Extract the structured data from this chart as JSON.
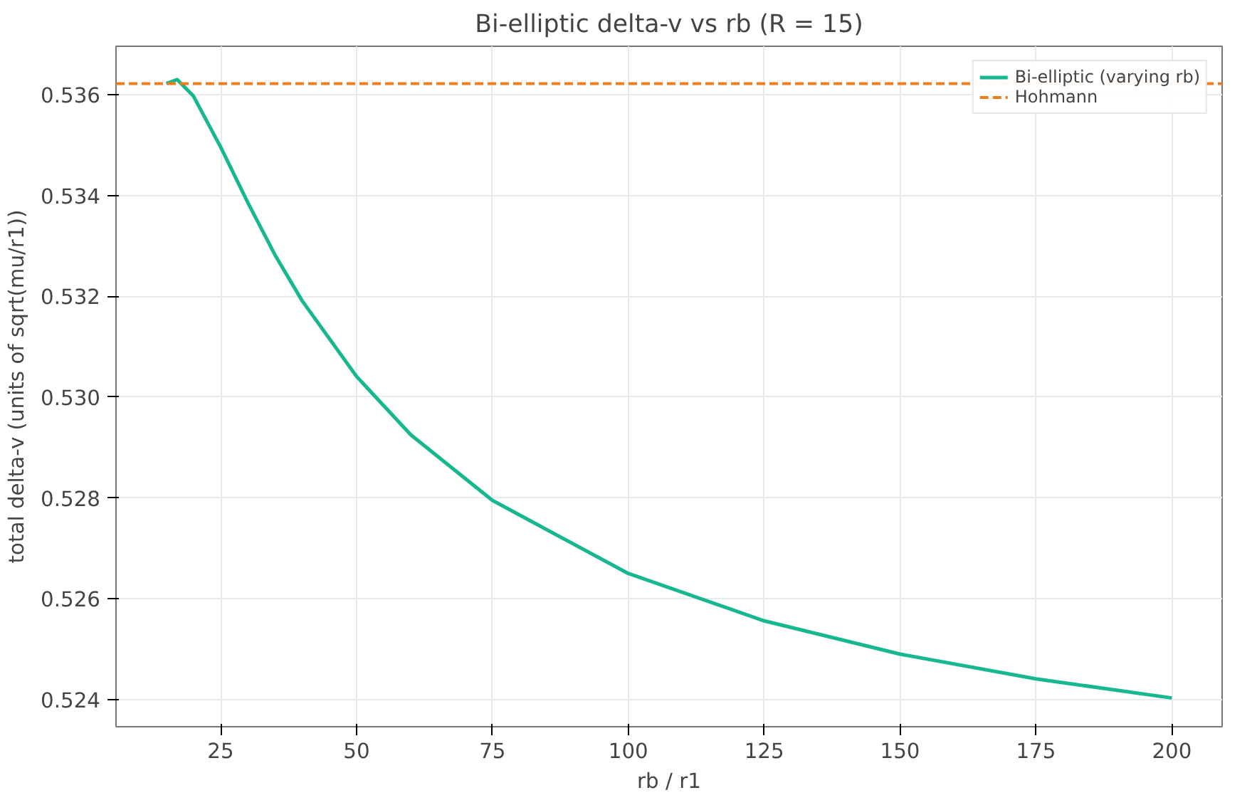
{
  "chart_data": {
    "type": "line",
    "title": "Bi-elliptic delta-v vs rb (R = 15)",
    "xlabel": "rb / r1",
    "ylabel": "total delta-v (units of sqrt(mu/r1))",
    "x": [
      15,
      17,
      20,
      25,
      30,
      35,
      40,
      50,
      60,
      75,
      100,
      125,
      150,
      175,
      200
    ],
    "series": [
      {
        "name": "Bi-elliptic (varying rb)",
        "color": "#17b890",
        "line_style": "solid",
        "values": [
          0.53622,
          0.5363,
          0.53597,
          0.53496,
          0.53386,
          0.53282,
          0.53191,
          0.53041,
          0.52925,
          0.52795,
          0.5265,
          0.52556,
          0.5249,
          0.52441,
          0.52403
        ]
      }
    ],
    "ref_lines": [
      {
        "axis": "y",
        "value": 0.53622,
        "label": "Hohmann",
        "color": "#f07c1c",
        "line_style": "dashed"
      }
    ],
    "xlim": [
      5.75,
      209.25
    ],
    "ylim": [
      0.52346,
      0.53696
    ],
    "xticks": [
      25,
      50,
      75,
      100,
      125,
      150,
      175,
      200
    ],
    "yticks": [
      {
        "value": 0.524,
        "label": "0.524"
      },
      {
        "value": 0.526,
        "label": "0.526"
      },
      {
        "value": 0.528,
        "label": "0.528"
      },
      {
        "value": 0.53,
        "label": "0.530"
      },
      {
        "value": 0.532,
        "label": "0.532"
      },
      {
        "value": 0.534,
        "label": "0.534"
      },
      {
        "value": 0.536,
        "label": "0.536"
      }
    ],
    "grid": true,
    "legend": "top right"
  }
}
